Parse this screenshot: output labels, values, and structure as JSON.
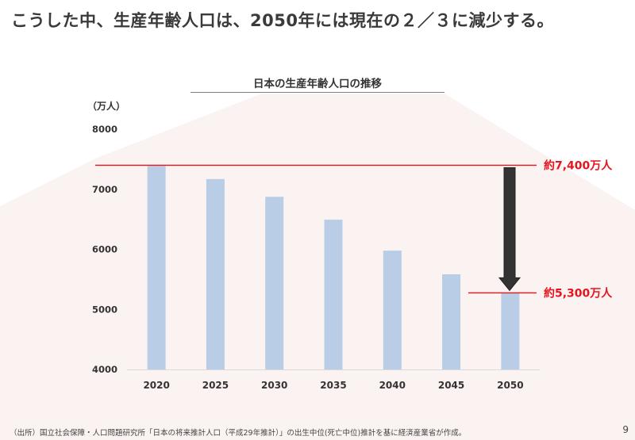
{
  "headline": "こうした中、生産年齢人口は、2050年には現在の２／３に減少する。",
  "page_number": "9",
  "source_note": "（出所）国立社会保障・人口問題研究所「日本の将来推計人口（平成29年推計）」の出生中位(死亡中位)推計を基に経済産業省が作成。",
  "colors": {
    "bar": "#b9cde6",
    "ref_line": "#e8141c",
    "arrow": "#333333",
    "callout_text": "#e8141c"
  },
  "chart_data": {
    "type": "bar",
    "title": "日本の生産年齢人口の推移",
    "ylabel": "（万人）",
    "xlabel": "",
    "categories": [
      "2020",
      "2025",
      "2030",
      "2035",
      "2040",
      "2045",
      "2050"
    ],
    "values": [
      7406,
      7170,
      6875,
      6494,
      5978,
      5584,
      5275
    ],
    "ylim": [
      4000,
      8000
    ],
    "yticks": [
      "4000",
      "5000",
      "6000",
      "7000",
      "8000"
    ],
    "grid": false,
    "annotations": [
      {
        "label": "約7,400万人",
        "value": 7400
      },
      {
        "label": "約5,300万人",
        "value": 5275
      }
    ]
  }
}
